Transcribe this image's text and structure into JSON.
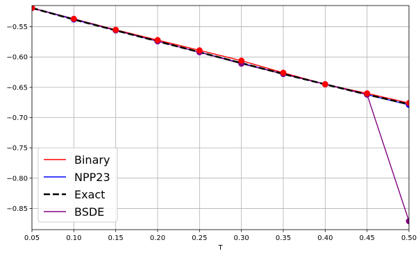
{
  "chart_data": {
    "type": "line",
    "title": "",
    "xlabel": "T",
    "ylabel": "",
    "xlim": [
      0.05,
      0.5
    ],
    "ylim": [
      -0.885,
      -0.515
    ],
    "grid": true,
    "legend_position": "lower-left",
    "x": [
      0.05,
      0.1,
      0.15,
      0.2,
      0.25,
      0.3,
      0.35,
      0.4,
      0.45,
      0.5
    ],
    "x_tick_labels": [
      "0.05",
      "0.10",
      "0.15",
      "0.20",
      "0.25",
      "0.30",
      "0.35",
      "0.40",
      "0.45",
      "0.50"
    ],
    "y_ticks": [
      -0.55,
      -0.6,
      -0.65,
      -0.7,
      -0.75,
      -0.8,
      -0.85
    ],
    "y_tick_labels": [
      "−0.55",
      "−0.60",
      "−0.65",
      "−0.70",
      "−0.75",
      "−0.80",
      "−0.85"
    ],
    "series": [
      {
        "name": "Binary",
        "color": "#ff0000",
        "dash": "solid",
        "markers": true,
        "values": [
          -0.519,
          -0.537,
          -0.555,
          -0.572,
          -0.589,
          -0.606,
          -0.626,
          -0.645,
          -0.66,
          -0.676
        ]
      },
      {
        "name": "NPP23",
        "color": "#0000ff",
        "dash": "solid",
        "markers": true,
        "values": [
          -0.519,
          -0.538,
          -0.556,
          -0.574,
          -0.592,
          -0.61,
          -0.628,
          -0.645,
          -0.662,
          -0.679
        ]
      },
      {
        "name": "Exact",
        "color": "#000000",
        "dash": "dashed",
        "markers": false,
        "values": [
          -0.519,
          -0.538,
          -0.556,
          -0.574,
          -0.592,
          -0.61,
          -0.628,
          -0.645,
          -0.662,
          -0.678
        ]
      },
      {
        "name": "BSDE",
        "color": "#800080",
        "dash": "solid",
        "markers": true,
        "values": [
          -0.519,
          -0.537,
          -0.556,
          -0.574,
          -0.592,
          -0.611,
          -0.628,
          -0.645,
          -0.662,
          -0.871
        ]
      }
    ]
  }
}
